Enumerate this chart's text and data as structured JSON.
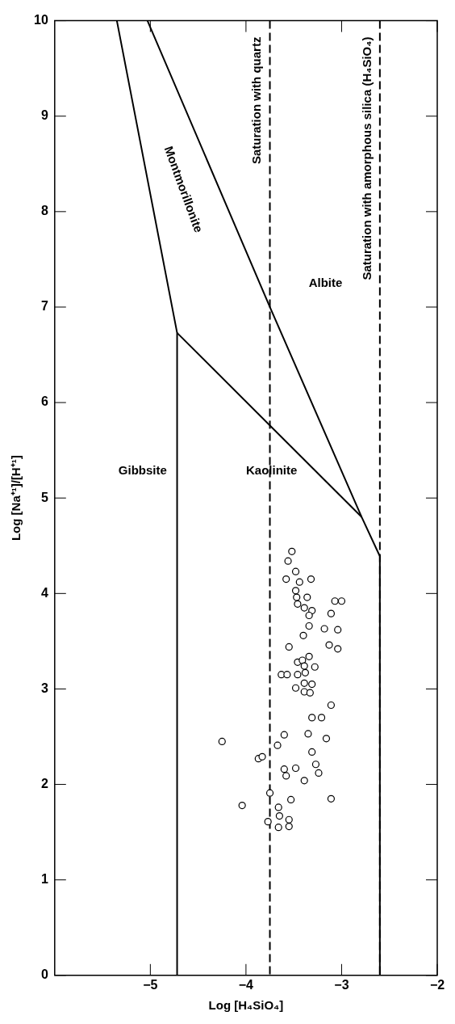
{
  "chart_data": {
    "type": "scatter",
    "xlabel": "Log [H₄SiO₄]",
    "ylabel": "Log [Na⁺¹]/[H⁺¹]",
    "xlim": [
      -6,
      -2
    ],
    "xticks": [
      -5,
      -4,
      -3,
      -2
    ],
    "ylim": [
      0,
      10
    ],
    "yticks": [
      0,
      1,
      2,
      3,
      4,
      5,
      6,
      7,
      8,
      9,
      10
    ],
    "legend": false,
    "series": [
      {
        "type": "line",
        "color": "#000000",
        "marker": "none",
        "x": [
          -4.72,
          -4.72,
          -5.35
        ],
        "values": [
          0,
          6.73,
          10
        ]
      },
      {
        "type": "line",
        "color": "#000000",
        "marker": "none",
        "x": [
          -4.72,
          -2.79
        ],
        "values": [
          6.73,
          4.8
        ]
      },
      {
        "type": "line",
        "color": "#000000",
        "marker": "none",
        "x": [
          -5.03,
          -3.75,
          -2.79,
          -2.6,
          -2.6
        ],
        "values": [
          10,
          7.0,
          4.8,
          4.39,
          0
        ]
      },
      {
        "color": "#000000",
        "marker": "circle",
        "x": [
          -3.52,
          -3.56,
          -3.48,
          -3.58,
          -3.44,
          -3.32,
          -3.48,
          -3.47,
          -3.36,
          -3.46,
          -3.39,
          -3.31,
          -3.34,
          -3.07,
          -3.0,
          -3.11,
          -3.34,
          -3.18,
          -3.04,
          -3.4,
          -3.55,
          -3.13,
          -3.04,
          -3.34,
          -3.46,
          -3.41,
          -3.39,
          -3.28,
          -3.63,
          -3.57,
          -3.46,
          -3.38,
          -3.39,
          -3.31,
          -3.48,
          -3.39,
          -3.33,
          -3.11,
          -3.31,
          -3.21,
          -3.6,
          -3.35,
          -3.16,
          -4.25,
          -3.67,
          -3.31,
          -3.87,
          -3.83,
          -3.27,
          -3.6,
          -3.48,
          -3.24,
          -3.58,
          -3.39,
          -3.75,
          -3.53,
          -3.11,
          -4.04,
          -3.66,
          -3.65,
          -3.77,
          -3.55,
          -3.66,
          -3.55
        ],
        "values": [
          4.44,
          4.34,
          4.23,
          4.15,
          4.12,
          4.15,
          4.03,
          3.96,
          3.96,
          3.89,
          3.85,
          3.82,
          3.77,
          3.92,
          3.92,
          3.79,
          3.66,
          3.63,
          3.62,
          3.56,
          3.44,
          3.46,
          3.42,
          3.34,
          3.28,
          3.3,
          3.24,
          3.23,
          3.15,
          3.15,
          3.15,
          3.17,
          3.06,
          3.05,
          3.01,
          2.97,
          2.96,
          2.83,
          2.7,
          2.7,
          2.52,
          2.53,
          2.48,
          2.45,
          2.41,
          2.34,
          2.27,
          2.29,
          2.21,
          2.16,
          2.17,
          2.12,
          2.09,
          2.04,
          1.91,
          1.84,
          1.85,
          1.78,
          1.76,
          1.67,
          1.61,
          1.63,
          1.55,
          1.56
        ]
      }
    ],
    "ref_lines": [
      {
        "axis": "x",
        "value": -3.75,
        "label": "Saturation with quartz",
        "line_style": "dashed",
        "color": "#000000"
      },
      {
        "axis": "x",
        "value": -2.6,
        "label": "Saturation with amorphous silica (H₄SiO₄)",
        "line_style": "dashed",
        "color": "#000000"
      }
    ],
    "annotations": [
      "Gibbsite",
      "Kaolinite",
      "Albite",
      "Montmorillonite"
    ]
  }
}
